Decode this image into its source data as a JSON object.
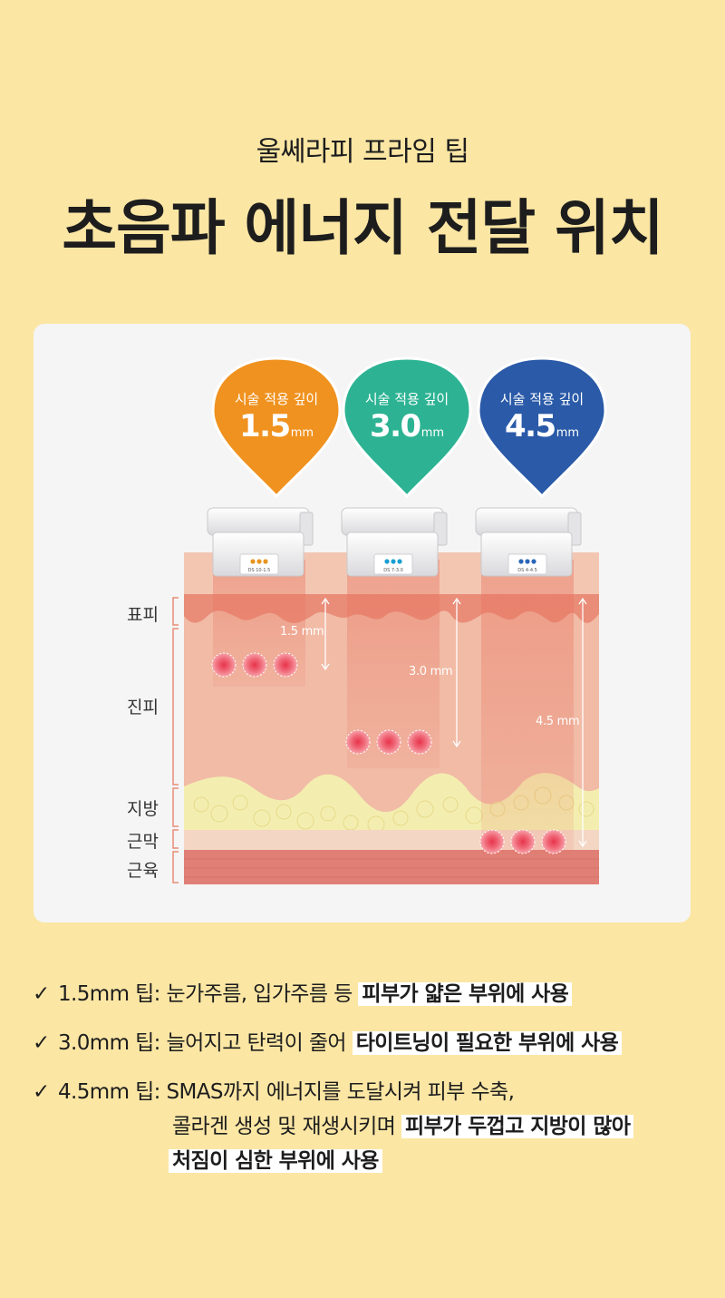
{
  "header": {
    "subtitle": "울쎄라피 프라임 팁",
    "title": "초음파 에너지 전달 위치"
  },
  "pins": [
    {
      "label": "시술 적용 깊이",
      "value": "1.5",
      "unit": "mm",
      "color": "#f0921f"
    },
    {
      "label": "시술 적용 깊이",
      "value": "3.0",
      "unit": "mm",
      "color": "#2db393"
    },
    {
      "label": "시술 적용 깊이",
      "value": "4.5",
      "unit": "mm",
      "color": "#2a5aa8"
    }
  ],
  "tips": [
    {
      "code": "DS 10-1.5",
      "dot_color": "#e8951f"
    },
    {
      "code": "DS 7-3.0",
      "dot_color": "#1a9fd0"
    },
    {
      "code": "DS 4-4.5",
      "dot_color": "#2a66b8"
    }
  ],
  "layers": {
    "epidermis": "표피",
    "dermis": "진피",
    "fat": "지방",
    "fascia": "근막",
    "muscle": "근육"
  },
  "depths": [
    "1.5 mm",
    "3.0 mm",
    "4.5 mm"
  ],
  "bullets": [
    {
      "check": "✓",
      "prefix": "1.5mm 팁: 눈가주름, 입가주름 등 ",
      "highlight": "피부가 얇은 부위에 사용"
    },
    {
      "check": "✓",
      "prefix": "3.0mm 팁: 늘어지고 탄력이 줄어 ",
      "highlight": "타이트닝이 필요한 부위에 사용"
    },
    {
      "check": "✓",
      "prefix": "4.5mm 팁: SMAS까지 에너지를 도달시켜 피부 수축,",
      "line2_prefix": "콜라겐 생성 및 재생시키며 ",
      "line2_highlight": "피부가 두껍고 지방이 많아",
      "line3_highlight": "처짐이 심한 부위에 사용"
    }
  ],
  "colors": {
    "background": "#fbe6a4",
    "card": "#f5f5f5",
    "dermis": "#f1bba6",
    "epidermis": "#e98c78",
    "fat": "#f3eeb0",
    "muscle": "#e07f76"
  }
}
